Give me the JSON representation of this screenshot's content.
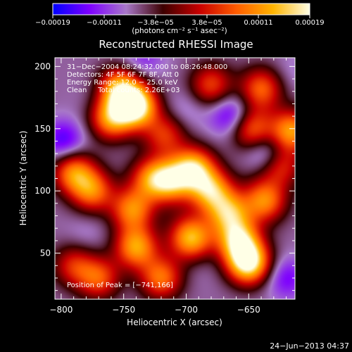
{
  "chart_data": {
    "type": "heatmap",
    "title": "Reconstructed RHESSI Image",
    "xlabel": "Heliocentric X (arcsec)",
    "ylabel": "Heliocentric Y (arcsec)",
    "xlim": [
      -805,
      -613
    ],
    "ylim": [
      13,
      207
    ],
    "x_ticks": [
      -800,
      -750,
      -700,
      -650
    ],
    "x_tick_labels": [
      "−800",
      "−750",
      "−700",
      "−650"
    ],
    "y_ticks": [
      50,
      100,
      150,
      200
    ],
    "y_tick_labels": [
      "50",
      "100",
      "150",
      "200"
    ],
    "colorbar": {
      "range": [
        -0.00019,
        0.00019
      ],
      "tick_labels": [
        "−0.00019",
        "−0.00011",
        "−3.8e−05",
        "3.8e−05",
        "0.00011",
        "0.00019"
      ],
      "units_label": "(photons cm⁻² s⁻¹ asec⁻²)",
      "color_stops": [
        "#0000ff",
        "#7e00ff",
        "#a878c8",
        "#3c0000",
        "#c80000",
        "#ff5c00",
        "#ffb400",
        "#ffffe6"
      ]
    },
    "annotations": [
      "31−Dec−2004 08:24:32.000 to 08:26:48.000",
      "Detectors: 4F 5F 6F 7F 8F, Att 0",
      "Energy Range: 12.0 − 25.0 keV",
      "Clean     Total counts: 2.26E+03"
    ],
    "peak_label": "Position of Peak = [−741,166]",
    "peak": [
      -741,
      166
    ],
    "blobs": [
      {
        "x": -740,
        "y": 168,
        "value": 0.00019
      },
      {
        "x": -753,
        "y": 182,
        "value": 0.00013
      },
      {
        "x": -760,
        "y": 158,
        "value": 0.00011
      },
      {
        "x": -694,
        "y": 118,
        "value": 0.00014
      },
      {
        "x": -712,
        "y": 108,
        "value": 0.00011
      },
      {
        "x": -680,
        "y": 100,
        "value": 0.00012
      },
      {
        "x": -666,
        "y": 82,
        "value": 0.00011
      },
      {
        "x": -650,
        "y": 42,
        "value": 0.00019
      },
      {
        "x": -658,
        "y": 60,
        "value": 0.00014
      },
      {
        "x": -696,
        "y": 62,
        "value": 0.00014
      },
      {
        "x": -720,
        "y": 30,
        "value": 9e-05
      },
      {
        "x": -740,
        "y": 55,
        "value": 0.00012
      },
      {
        "x": -790,
        "y": 115,
        "value": 0.0001
      },
      {
        "x": -775,
        "y": 100,
        "value": 9e-05
      },
      {
        "x": -743,
        "y": 85,
        "value": 0.0001
      },
      {
        "x": -728,
        "y": 110,
        "value": 8e-05
      },
      {
        "x": -648,
        "y": 150,
        "value": 9e-05
      },
      {
        "x": -616,
        "y": 148,
        "value": 0.00012
      },
      {
        "x": -640,
        "y": 182,
        "value": 8e-05
      },
      {
        "x": -637,
        "y": 92,
        "value": 0.0001
      },
      {
        "x": -625,
        "y": 120,
        "value": 6e-05
      },
      {
        "x": -680,
        "y": 185,
        "value": 6e-05
      },
      {
        "x": -717,
        "y": 145,
        "value": 5e-05
      },
      {
        "x": -770,
        "y": 30,
        "value": 7e-05
      },
      {
        "x": -790,
        "y": 40,
        "value": 4e-05
      },
      {
        "x": -798,
        "y": 140,
        "value": -0.00016
      },
      {
        "x": -663,
        "y": 160,
        "value": -0.00017
      },
      {
        "x": -635,
        "y": 130,
        "value": -0.00016
      },
      {
        "x": -620,
        "y": 30,
        "value": -0.00014
      },
      {
        "x": -735,
        "y": 205,
        "value": -0.00012
      },
      {
        "x": -700,
        "y": 165,
        "value": -0.0001
      },
      {
        "x": -775,
        "y": 175,
        "value": -8e-05
      },
      {
        "x": -780,
        "y": 65,
        "value": -9e-05
      },
      {
        "x": -690,
        "y": 40,
        "value": -8e-05
      },
      {
        "x": -705,
        "y": 85,
        "value": -6e-05
      },
      {
        "x": -615,
        "y": 195,
        "value": -9e-05
      },
      {
        "x": -650,
        "y": 110,
        "value": -6e-05
      }
    ]
  },
  "timestamp": "24−Jun−2013 04:37"
}
